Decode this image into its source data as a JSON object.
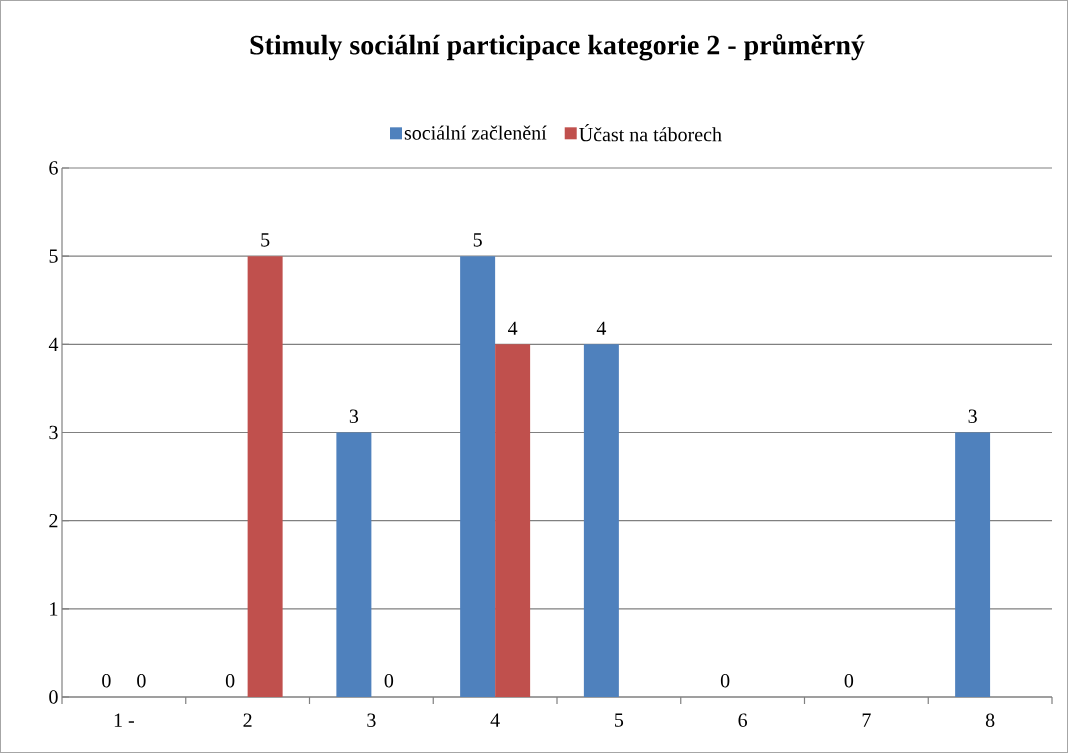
{
  "chart_data": {
    "type": "bar",
    "title": "Stimuly sociální participace kategorie 2 - průměrný",
    "categories": [
      "1 -",
      "2",
      "3",
      "4",
      "5",
      "6",
      "7",
      "8"
    ],
    "series": [
      {
        "name": "sociální začlenění",
        "color": "#4f81bd",
        "values": [
          0,
          0,
          3,
          5,
          4,
          0,
          0,
          3
        ]
      },
      {
        "name": "Účast na táborech",
        "color": "#c0504d",
        "values": [
          0,
          5,
          0,
          4,
          null,
          null,
          null,
          null
        ]
      }
    ],
    "ylim": [
      0,
      6
    ],
    "yticks": [
      0,
      1,
      2,
      3,
      4,
      5,
      6
    ],
    "grid": "y",
    "legend": "top",
    "data_labels": true
  }
}
